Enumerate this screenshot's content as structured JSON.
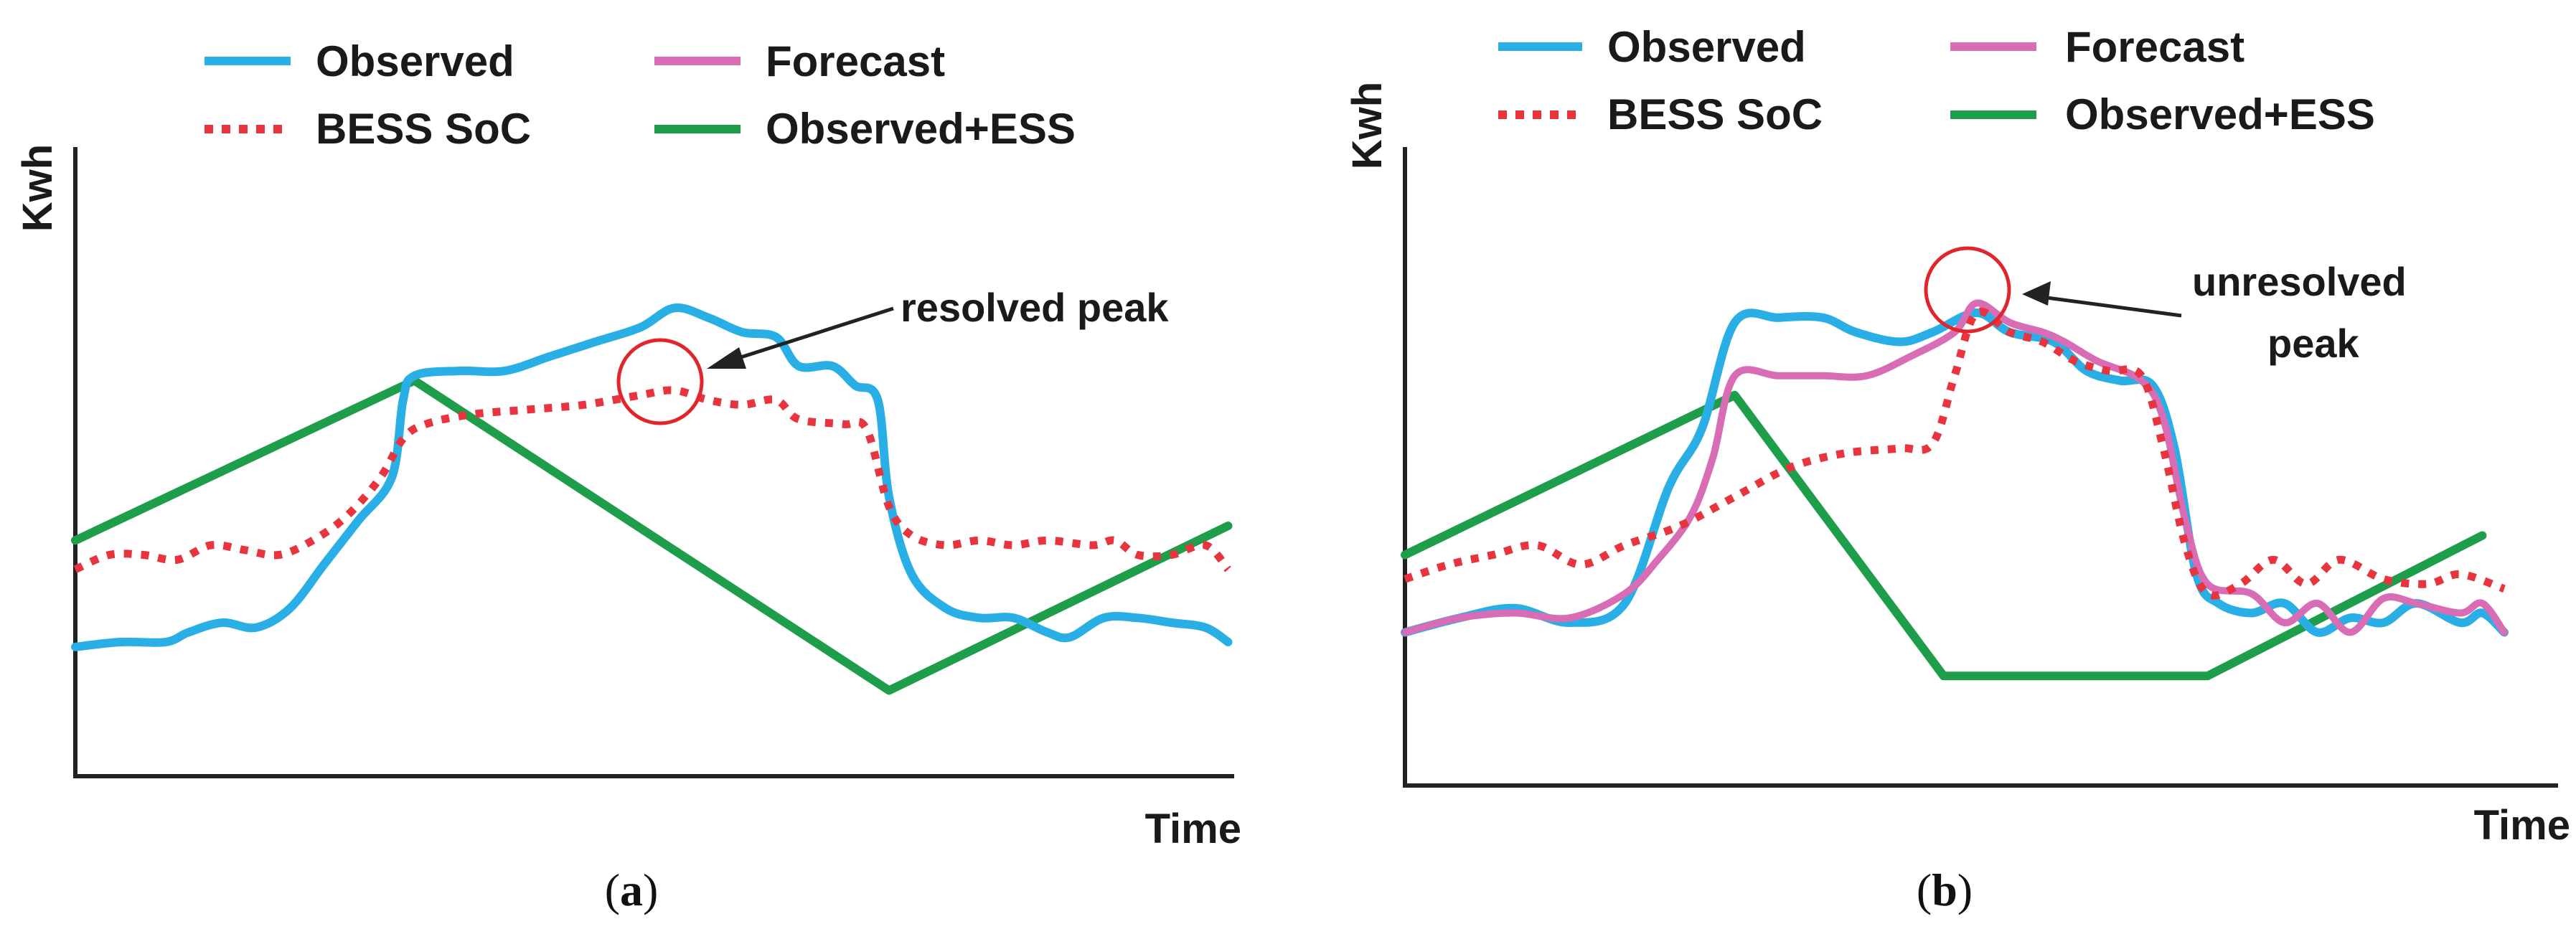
{
  "colors": {
    "observed": "#29aee6",
    "forecast": "#d86db6",
    "bess_soc": "#e8343f",
    "observed_ess": "#1e9e4a",
    "axis": "#222222",
    "circle": "#e0262c",
    "arrow": "#222222"
  },
  "chart_data": [
    {
      "id": "a",
      "type": "line",
      "caption": {
        "open": "(",
        "label": "a",
        "close": ")"
      },
      "xlabel": "Time",
      "ylabel": "Kwh",
      "xlim": [
        0,
        100
      ],
      "ylim": [
        0,
        100
      ],
      "grid": false,
      "legend_position": "top",
      "legend": [
        {
          "key": "observed",
          "label": "Observed",
          "style": "solid"
        },
        {
          "key": "forecast",
          "label": "Forecast",
          "style": "solid"
        },
        {
          "key": "bess_soc",
          "label": "BESS SoC",
          "style": "dotted"
        },
        {
          "key": "observed_ess",
          "label": "Observed+ESS",
          "style": "solid"
        }
      ],
      "annotation": {
        "lines": [
          "resolved peak"
        ],
        "target": {
          "x": 53,
          "y": 67
        }
      },
      "series": [
        {
          "key": "observed",
          "name": "Observed",
          "points": [
            [
              0,
              19
            ],
            [
              4,
              20
            ],
            [
              8,
              20
            ],
            [
              10,
              22
            ],
            [
              13,
              24
            ],
            [
              16,
              23
            ],
            [
              19,
              27
            ],
            [
              22,
              36
            ],
            [
              25,
              45
            ],
            [
              28,
              54
            ],
            [
              29,
              70
            ],
            [
              30,
              75
            ],
            [
              34,
              76
            ],
            [
              38,
              76
            ],
            [
              42,
              79
            ],
            [
              46,
              82
            ],
            [
              50,
              85
            ],
            [
              53,
              89
            ],
            [
              56,
              87
            ],
            [
              59,
              84
            ],
            [
              62,
              83
            ],
            [
              64,
              77
            ],
            [
              67,
              77
            ],
            [
              69,
              73
            ],
            [
              71,
              70
            ],
            [
              72,
              50
            ],
            [
              74,
              34
            ],
            [
              77,
              27
            ],
            [
              80,
              25
            ],
            [
              83,
              25
            ],
            [
              86,
              22
            ],
            [
              88,
              21
            ],
            [
              91,
              25
            ],
            [
              94,
              25
            ],
            [
              97,
              24
            ],
            [
              100,
              23
            ],
            [
              102,
              20
            ]
          ]
        },
        {
          "key": "bess_soc",
          "name": "BESS SoC",
          "points": [
            [
              0,
              35
            ],
            [
              3,
              38
            ],
            [
              6,
              38
            ],
            [
              9,
              37
            ],
            [
              12,
              40
            ],
            [
              15,
              39
            ],
            [
              18,
              38
            ],
            [
              21,
              41
            ],
            [
              24,
              46
            ],
            [
              27,
              54
            ],
            [
              29,
              62
            ],
            [
              31,
              65
            ],
            [
              35,
              67
            ],
            [
              40,
              68
            ],
            [
              45,
              69
            ],
            [
              50,
              71
            ],
            [
              53,
              72
            ],
            [
              56,
              70
            ],
            [
              59,
              69
            ],
            [
              62,
              70
            ],
            [
              64,
              66
            ],
            [
              68,
              65
            ],
            [
              70,
              64
            ],
            [
              72,
              48
            ],
            [
              74,
              42
            ],
            [
              77,
              40
            ],
            [
              80,
              41
            ],
            [
              83,
              40
            ],
            [
              86,
              41
            ],
            [
              90,
              40
            ],
            [
              92,
              41
            ],
            [
              94,
              38
            ],
            [
              97,
              38
            ],
            [
              100,
              40
            ],
            [
              102,
              35
            ]
          ]
        },
        {
          "key": "observed_ess",
          "name": "Observed+ESS",
          "points": [
            [
              0,
              41
            ],
            [
              30,
              74
            ],
            [
              72,
              10
            ],
            [
              102,
              44
            ]
          ]
        }
      ]
    },
    {
      "id": "b",
      "type": "line",
      "caption": {
        "open": "(",
        "label": "b",
        "close": ")"
      },
      "xlabel": "Time",
      "ylabel": "Kwh",
      "xlim": [
        0,
        100
      ],
      "ylim": [
        0,
        100
      ],
      "grid": false,
      "legend_position": "top",
      "legend": [
        {
          "key": "observed",
          "label": "Observed",
          "style": "solid"
        },
        {
          "key": "forecast",
          "label": "Forecast",
          "style": "solid"
        },
        {
          "key": "bess_soc",
          "label": "BESS SoC",
          "style": "dotted"
        },
        {
          "key": "observed_ess",
          "label": "Observed+ESS",
          "style": "solid"
        }
      ],
      "annotation": {
        "lines": [
          "unresolved",
          "peak"
        ],
        "target": {
          "x": 52,
          "y": 90
        }
      },
      "series": [
        {
          "key": "observed",
          "name": "Observed",
          "points": [
            [
              0,
              22
            ],
            [
              5,
              25
            ],
            [
              10,
              27
            ],
            [
              15,
              24
            ],
            [
              20,
              28
            ],
            [
              24,
              52
            ],
            [
              27,
              64
            ],
            [
              30,
              86
            ],
            [
              34,
              87
            ],
            [
              38,
              87
            ],
            [
              41,
              84
            ],
            [
              45,
              82
            ],
            [
              48,
              84
            ],
            [
              52,
              88
            ],
            [
              55,
              84
            ],
            [
              59,
              82
            ],
            [
              62,
              76
            ],
            [
              65,
              74
            ],
            [
              68,
              73
            ],
            [
              70,
              60
            ],
            [
              72,
              34
            ],
            [
              74,
              28
            ],
            [
              77,
              26
            ],
            [
              80,
              28
            ],
            [
              83,
              22
            ],
            [
              86,
              25
            ],
            [
              89,
              24
            ],
            [
              92,
              28
            ],
            [
              96,
              24
            ],
            [
              98,
              26
            ],
            [
              100,
              22
            ]
          ]
        },
        {
          "key": "forecast",
          "name": "Forecast",
          "points": [
            [
              0,
              22
            ],
            [
              5,
              25
            ],
            [
              10,
              26
            ],
            [
              15,
              25
            ],
            [
              20,
              30
            ],
            [
              23,
              37
            ],
            [
              26,
              46
            ],
            [
              28,
              58
            ],
            [
              30,
              75
            ],
            [
              34,
              75
            ],
            [
              38,
              75
            ],
            [
              42,
              75
            ],
            [
              46,
              79
            ],
            [
              50,
              84
            ],
            [
              52,
              90
            ],
            [
              55,
              86
            ],
            [
              58,
              84
            ],
            [
              60,
              82
            ],
            [
              63,
              78
            ],
            [
              67,
              74
            ],
            [
              69,
              66
            ],
            [
              71,
              45
            ],
            [
              73,
              32
            ],
            [
              77,
              30
            ],
            [
              80,
              24
            ],
            [
              83,
              28
            ],
            [
              86,
              22
            ],
            [
              89,
              29
            ],
            [
              92,
              28
            ],
            [
              96,
              26
            ],
            [
              98,
              28
            ],
            [
              100,
              22
            ]
          ]
        },
        {
          "key": "bess_soc",
          "name": "BESS SoC",
          "points": [
            [
              0,
              33
            ],
            [
              4,
              36
            ],
            [
              8,
              38
            ],
            [
              12,
              40
            ],
            [
              16,
              36
            ],
            [
              20,
              40
            ],
            [
              25,
              44
            ],
            [
              30,
              50
            ],
            [
              35,
              56
            ],
            [
              40,
              59
            ],
            [
              45,
              60
            ],
            [
              48,
              61
            ],
            [
              50,
              75
            ],
            [
              52,
              88
            ],
            [
              55,
              84
            ],
            [
              58,
              82
            ],
            [
              61,
              78
            ],
            [
              64,
              76
            ],
            [
              67,
              75
            ],
            [
              69,
              60
            ],
            [
              71,
              40
            ],
            [
              73,
              30
            ],
            [
              76,
              32
            ],
            [
              79,
              37
            ],
            [
              82,
              32
            ],
            [
              85,
              37
            ],
            [
              89,
              33
            ],
            [
              93,
              32
            ],
            [
              96,
              34
            ],
            [
              100,
              31
            ]
          ]
        },
        {
          "key": "observed_ess",
          "name": "Observed+ESS",
          "points": [
            [
              0,
              38
            ],
            [
              30,
              71
            ],
            [
              49,
              13
            ],
            [
              73,
              13
            ],
            [
              98,
              42
            ]
          ]
        }
      ]
    }
  ]
}
